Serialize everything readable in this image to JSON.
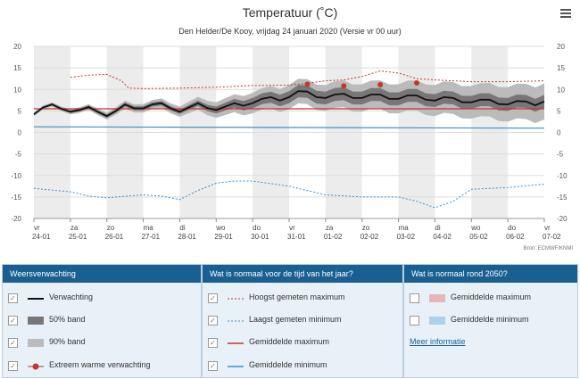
{
  "header": {
    "title": "Temperatuur (˚C)",
    "subtitle": "Den Helder/De Kooy, vrijdag 24 januari 2020 (Versie vr 00 uur)",
    "menu_icon": "hamburger-menu-icon",
    "source": "Bron: ECMWF/KNMI"
  },
  "chart_data": {
    "type": "line",
    "title": "Temperatuur (˚C)",
    "subtitle": "Den Helder/De Kooy, vrijdag 24 januari 2020 (Versie vr 00 uur)",
    "ylim": [
      -20,
      20
    ],
    "yticks": [
      20,
      15,
      10,
      5,
      0,
      -5,
      -10,
      -15,
      -20
    ],
    "xlim": [
      0,
      14
    ],
    "grid": true,
    "categories": [
      {
        "day": "vr",
        "date": "24-01"
      },
      {
        "day": "za",
        "date": "25-01"
      },
      {
        "day": "zo",
        "date": "26-01"
      },
      {
        "day": "ma",
        "date": "27-01"
      },
      {
        "day": "di",
        "date": "28-01"
      },
      {
        "day": "wo",
        "date": "29-01"
      },
      {
        "day": "do",
        "date": "30-01"
      },
      {
        "day": "vr",
        "date": "31-01"
      },
      {
        "day": "za",
        "date": "01-02"
      },
      {
        "day": "zo",
        "date": "02-02"
      },
      {
        "day": "ma",
        "date": "03-02"
      },
      {
        "day": "di",
        "date": "04-02"
      },
      {
        "day": "wo",
        "date": "05-02"
      },
      {
        "day": "do",
        "date": "06-02"
      },
      {
        "day": "vr",
        "date": "07-02"
      }
    ],
    "series": [
      {
        "name": "Verwachting",
        "color": "#111111",
        "x": [
          0,
          0.25,
          0.5,
          0.75,
          1,
          1.25,
          1.5,
          1.75,
          2,
          2.25,
          2.5,
          2.75,
          3,
          3.25,
          3.5,
          3.75,
          4,
          4.25,
          4.5,
          4.75,
          5,
          5.25,
          5.5,
          5.75,
          6,
          6.25,
          6.5,
          6.75,
          7,
          7.25,
          7.5,
          7.75,
          8,
          8.25,
          8.5,
          8.75,
          9,
          9.25,
          9.5,
          9.75,
          10,
          10.25,
          10.5,
          10.75,
          11,
          11.25,
          11.5,
          11.75,
          12,
          12.25,
          12.5,
          12.75,
          13,
          13.25,
          13.5,
          13.75,
          14
        ],
        "y": [
          4.2,
          5.8,
          6.5,
          5.5,
          4.8,
          5.2,
          5.9,
          4.8,
          3.8,
          5.0,
          6.5,
          5.6,
          5.6,
          6.5,
          6.8,
          5.6,
          4.8,
          5.8,
          6.8,
          5.7,
          5.2,
          6.0,
          6.8,
          6.2,
          6.8,
          7.8,
          8.2,
          7.4,
          8.2,
          9.6,
          9.5,
          8.2,
          8.0,
          8.8,
          9.0,
          8.0,
          8.0,
          8.8,
          8.8,
          7.8,
          7.8,
          8.6,
          8.6,
          7.6,
          7.4,
          8.2,
          8.0,
          7.0,
          7.0,
          7.6,
          7.6,
          6.6,
          6.5,
          7.3,
          7.2,
          6.3,
          7.2
        ]
      },
      {
        "name": "Hoogst gemeten maximum",
        "color": "#c0392b",
        "x": [
          1,
          1.5,
          2,
          2.4,
          2.6,
          3,
          4,
          5,
          6,
          7,
          7.5,
          8,
          8.5,
          9,
          9.5,
          10,
          10.5,
          11,
          11.5,
          12,
          13,
          14
        ],
        "y": [
          12.8,
          13.3,
          13.5,
          12.0,
          10.3,
          10.2,
          10.3,
          10.5,
          10.9,
          11.0,
          11.4,
          12.0,
          12.2,
          13.0,
          14.3,
          13.8,
          12.5,
          12.2,
          12.0,
          11.8,
          11.8,
          12.0
        ]
      },
      {
        "name": "Laagst gemeten minimum",
        "color": "#3a8fd0",
        "x": [
          0,
          1,
          1.5,
          2,
          3,
          3.5,
          4,
          4.5,
          5,
          5.5,
          6,
          7,
          8,
          9,
          10,
          10.5,
          11,
          11.5,
          12,
          13,
          14
        ],
        "y": [
          -13.0,
          -13.8,
          -14.8,
          -15.2,
          -14.5,
          -14.8,
          -15.6,
          -13.5,
          -11.8,
          -11.3,
          -11.3,
          -12.5,
          -14.5,
          -15.0,
          -15.0,
          -16.0,
          -17.5,
          -16.0,
          -13.2,
          -12.8,
          -12.0
        ]
      },
      {
        "name": "Gemiddelde maximum",
        "color": "#c0392b",
        "x": [
          0,
          14
        ],
        "y": [
          5.5,
          5.5
        ]
      },
      {
        "name": "Gemiddelde minimum",
        "color": "#3a8fd0",
        "x": [
          0,
          14
        ],
        "y": [
          1.3,
          1.0
        ]
      },
      {
        "name": "Extreem warme verwachting",
        "color": "#c0392b",
        "x": [
          7.5,
          8.5,
          9.5,
          10.5
        ],
        "y": [
          11.2,
          10.8,
          11.1,
          11.5
        ]
      }
    ],
    "bands": [
      {
        "name": "50% band",
        "color": "#777777",
        "x": [
          0,
          1,
          2,
          3,
          4,
          5,
          6,
          7,
          8,
          9,
          10,
          11,
          12,
          13,
          14
        ],
        "spread": [
          0.2,
          0.3,
          0.4,
          0.5,
          0.5,
          0.8,
          1.2,
          1.4,
          1.5,
          1.5,
          1.5,
          1.5,
          1.5,
          1.5,
          1.5
        ]
      },
      {
        "name": "90% band",
        "color": "#bbbbbb",
        "x": [
          0,
          1,
          2,
          3,
          4,
          5,
          6,
          7,
          8,
          9,
          10,
          11,
          12,
          13,
          14
        ],
        "spread": [
          0.4,
          0.6,
          0.8,
          1.0,
          1.2,
          1.8,
          2.4,
          2.8,
          3.0,
          3.2,
          3.4,
          3.6,
          3.8,
          4.0,
          4.2
        ]
      }
    ]
  },
  "legend": {
    "columns": [
      {
        "header": "Weersverwachting",
        "items": [
          {
            "label": "Verwachting",
            "checked": true,
            "symbol": "line-black"
          },
          {
            "label": "50% band",
            "checked": true,
            "symbol": "band-dark"
          },
          {
            "label": "90% band",
            "checked": true,
            "symbol": "band-light"
          },
          {
            "label": "Extreem warme verwachting",
            "checked": true,
            "symbol": "dot-red"
          }
        ]
      },
      {
        "header": "Wat is normaal voor de tijd van het jaar?",
        "items": [
          {
            "label": "Hoogst gemeten maximum",
            "checked": true,
            "symbol": "dotted-red"
          },
          {
            "label": "Laagst gemeten minimum",
            "checked": true,
            "symbol": "dotted-blue"
          },
          {
            "label": "Gemiddelde maximum",
            "checked": true,
            "symbol": "line-red"
          },
          {
            "label": "Gemiddelde minimum",
            "checked": true,
            "symbol": "line-blue"
          }
        ]
      },
      {
        "header": "Wat is normaal rond 2050?",
        "items": [
          {
            "label": "Gemiddelde maximum",
            "checked": false,
            "symbol": "band-pink"
          },
          {
            "label": "Gemiddelde minimum",
            "checked": false,
            "symbol": "band-lightblue"
          }
        ],
        "link": "Meer informatie"
      }
    ]
  },
  "colors": {
    "header_bg": "#1a5f92",
    "panel_bg": "#e8f1f8",
    "stripe": "#ececec"
  }
}
